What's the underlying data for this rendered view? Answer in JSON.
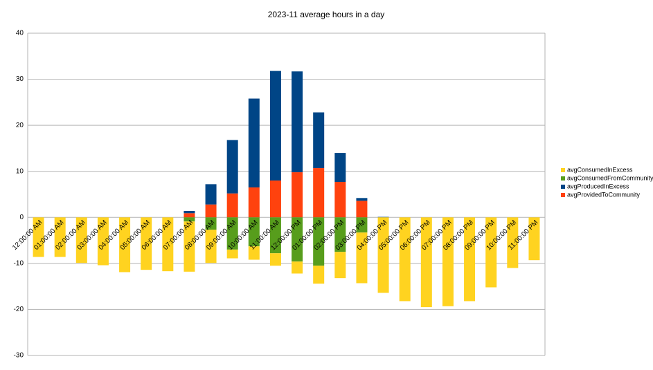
{
  "chart_data": {
    "type": "stacked-bar",
    "title": "2023-11 average hours in a day",
    "categories": [
      "12:00:00 AM",
      "01:00:00 AM",
      "02:00:00 AM",
      "03:00:00 AM",
      "04:00:00 AM",
      "05:00:00 AM",
      "06:00:00 AM",
      "07:00:00 AM",
      "08:00:00 AM",
      "09:00:00 AM",
      "10:00:00 AM",
      "11:00:00 AM",
      "12:00:00 PM",
      "01:00:00 PM",
      "02:00:00 PM",
      "03:00:00 PM",
      "04:00:00 PM",
      "05:00:00 PM",
      "06:00:00 PM",
      "07:00:00 PM",
      "08:00:00 PM",
      "09:00:00 PM",
      "10:00:00 PM",
      "11:00:00 PM"
    ],
    "series": [
      {
        "name": "avgConsumedInExcess",
        "color": "#ffd320",
        "values": [
          -8.6,
          -8.6,
          -9.9,
          -10.4,
          -11.9,
          -11.4,
          -11.7,
          -10.9,
          -7.2,
          -1.9,
          -2.9,
          -2.7,
          -2.6,
          -3.9,
          -5.7,
          -11.0,
          -16.4,
          -18.2,
          -19.5,
          -19.3,
          -18.2,
          -15.2,
          -11.0,
          -9.3
        ]
      },
      {
        "name": "avgConsumedFromCommunity",
        "color": "#579d1c",
        "values": [
          0,
          0,
          0,
          0,
          0,
          0,
          0,
          -0.9,
          -2.7,
          -7.0,
          -6.3,
          -7.8,
          -9.6,
          -10.5,
          -7.5,
          -3.3,
          0,
          0,
          0,
          0,
          0,
          0,
          0,
          0
        ]
      },
      {
        "name": "avgProducedInExcess",
        "color": "#004586",
        "values": [
          0,
          0,
          0,
          0,
          0,
          0,
          0,
          0.5,
          4.4,
          11.6,
          19.3,
          23.8,
          21.9,
          12.1,
          6.3,
          0.6,
          0.1,
          0,
          0,
          0,
          0,
          0,
          0,
          0
        ]
      },
      {
        "name": "avgProvidedToCommunity",
        "color": "#ff420e",
        "values": [
          0,
          0,
          0,
          0,
          0,
          0,
          0,
          0.9,
          2.8,
          5.2,
          6.5,
          8.0,
          9.8,
          10.7,
          7.7,
          3.6,
          0,
          0,
          0,
          0,
          0,
          0,
          0,
          0
        ]
      }
    ],
    "ylim": [
      -30,
      40
    ],
    "yticks": [
      -30,
      -20,
      -10,
      0,
      10,
      20,
      30,
      40
    ],
    "grid": true
  }
}
